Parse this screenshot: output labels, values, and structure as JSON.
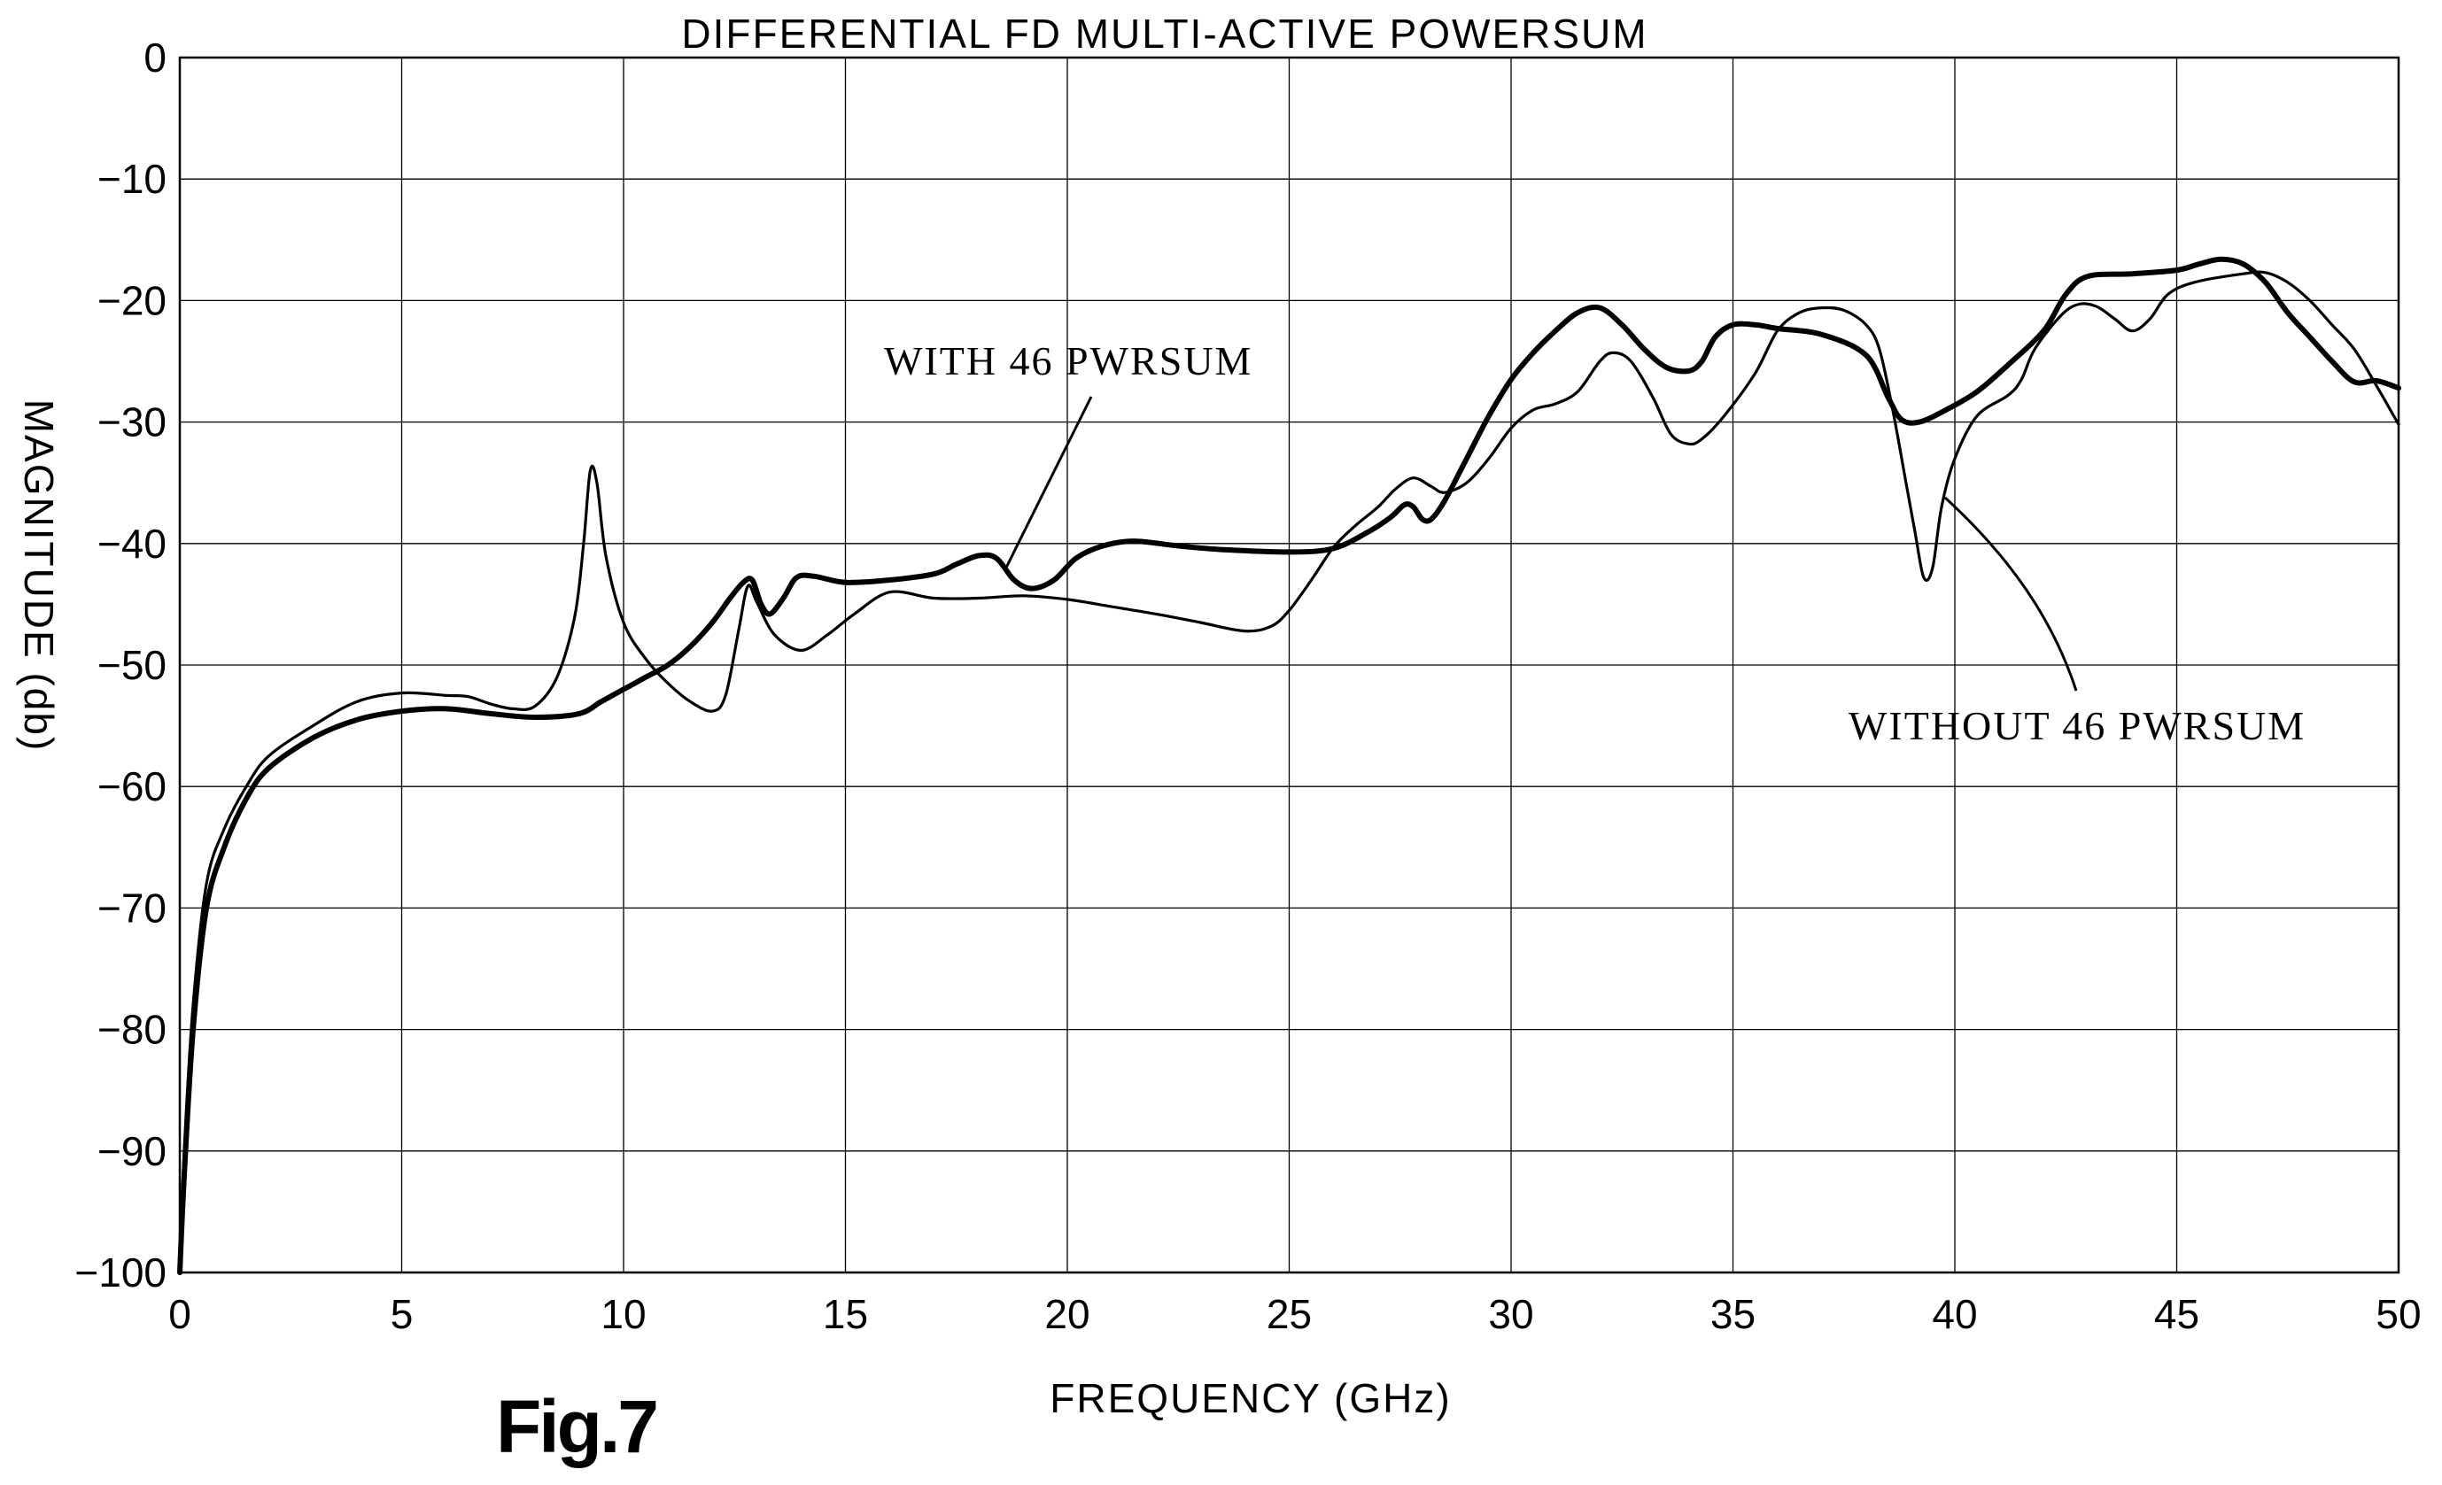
{
  "chart_data": {
    "type": "line",
    "title": "DIFFERENTIAL FD MULTI-ACTIVE POWERSUM",
    "xlabel": "FREQUENCY (GHz)",
    "ylabel": "MAGNITUDE (db)",
    "xlim": [
      0,
      50
    ],
    "ylim": [
      -100,
      0
    ],
    "grid": true,
    "x_ticks": [
      "0",
      "5",
      "10",
      "15",
      "20",
      "25",
      "30",
      "35",
      "40",
      "45",
      "50"
    ],
    "y_ticks": [
      "0",
      "−10",
      "−20",
      "−30",
      "−40",
      "−50",
      "−60",
      "−70",
      "−80",
      "−90",
      "−100"
    ],
    "series": [
      {
        "name": "WITH 46 PWRSUM",
        "style": "thick",
        "points": [
          [
            0.0,
            -100
          ],
          [
            0.1,
            -92
          ],
          [
            0.3,
            -80
          ],
          [
            0.6,
            -70
          ],
          [
            1,
            -65
          ],
          [
            1.5,
            -61
          ],
          [
            2,
            -58.5
          ],
          [
            3,
            -56
          ],
          [
            4,
            -54.5
          ],
          [
            5,
            -53.8
          ],
          [
            6,
            -53.6
          ],
          [
            7,
            -54
          ],
          [
            8,
            -54.3
          ],
          [
            9,
            -54
          ],
          [
            9.5,
            -53
          ],
          [
            10,
            -52
          ],
          [
            10.5,
            -51
          ],
          [
            11,
            -50
          ],
          [
            11.5,
            -48.5
          ],
          [
            12,
            -46.5
          ],
          [
            12.4,
            -44.5
          ],
          [
            12.7,
            -43.2
          ],
          [
            12.9,
            -43
          ],
          [
            13.1,
            -45
          ],
          [
            13.3,
            -45.8
          ],
          [
            13.6,
            -44.5
          ],
          [
            13.9,
            -42.8
          ],
          [
            14.3,
            -42.7
          ],
          [
            15,
            -43.2
          ],
          [
            16,
            -43
          ],
          [
            17,
            -42.5
          ],
          [
            17.5,
            -41.7
          ],
          [
            18,
            -41
          ],
          [
            18.4,
            -41.2
          ],
          [
            18.8,
            -43
          ],
          [
            19.2,
            -43.7
          ],
          [
            19.7,
            -43
          ],
          [
            20.2,
            -41.2
          ],
          [
            20.8,
            -40.2
          ],
          [
            21.5,
            -39.8
          ],
          [
            22.5,
            -40.2
          ],
          [
            23.5,
            -40.5
          ],
          [
            25,
            -40.7
          ],
          [
            26,
            -40.4
          ],
          [
            26.8,
            -39
          ],
          [
            27.3,
            -37.8
          ],
          [
            27.6,
            -36.8
          ],
          [
            27.8,
            -37
          ],
          [
            28,
            -38
          ],
          [
            28.2,
            -38
          ],
          [
            28.5,
            -36.5
          ],
          [
            29,
            -33
          ],
          [
            29.5,
            -29.5
          ],
          [
            30,
            -26.5
          ],
          [
            30.5,
            -24.3
          ],
          [
            31,
            -22.5
          ],
          [
            31.5,
            -21
          ],
          [
            32,
            -20.6
          ],
          [
            32.5,
            -22
          ],
          [
            33,
            -24
          ],
          [
            33.5,
            -25.5
          ],
          [
            34,
            -25.8
          ],
          [
            34.3,
            -25
          ],
          [
            34.6,
            -23
          ],
          [
            35,
            -22
          ],
          [
            35.5,
            -22
          ],
          [
            36,
            -22.3
          ],
          [
            37,
            -22.8
          ],
          [
            38,
            -24.5
          ],
          [
            38.5,
            -28
          ],
          [
            38.8,
            -29.8
          ],
          [
            39.2,
            -30
          ],
          [
            39.8,
            -29
          ],
          [
            40.5,
            -27.5
          ],
          [
            41.2,
            -25.3
          ],
          [
            42,
            -22.5
          ],
          [
            42.5,
            -19.5
          ],
          [
            43,
            -18
          ],
          [
            44,
            -17.8
          ],
          [
            45,
            -17.5
          ],
          [
            45.5,
            -17
          ],
          [
            46,
            -16.6
          ],
          [
            46.5,
            -17
          ],
          [
            47,
            -18.5
          ],
          [
            47.5,
            -21
          ],
          [
            48,
            -23
          ],
          [
            48.5,
            -25
          ],
          [
            49,
            -26.7
          ],
          [
            49.5,
            -26.6
          ],
          [
            50,
            -27.2
          ]
        ]
      },
      {
        "name": "WITHOUT 46 PWRSUM",
        "style": "thin",
        "points": [
          [
            0.0,
            -100
          ],
          [
            0.1,
            -90
          ],
          [
            0.3,
            -78
          ],
          [
            0.6,
            -68
          ],
          [
            1,
            -63.5
          ],
          [
            1.5,
            -60
          ],
          [
            2,
            -57.5
          ],
          [
            3,
            -55
          ],
          [
            4,
            -53
          ],
          [
            5,
            -52.3
          ],
          [
            6,
            -52.5
          ],
          [
            6.5,
            -52.6
          ],
          [
            7,
            -53.2
          ],
          [
            7.5,
            -53.6
          ],
          [
            8,
            -53.4
          ],
          [
            8.5,
            -51
          ],
          [
            8.9,
            -46
          ],
          [
            9.1,
            -40
          ],
          [
            9.25,
            -34
          ],
          [
            9.4,
            -35
          ],
          [
            9.6,
            -41
          ],
          [
            10,
            -46.5
          ],
          [
            10.5,
            -49.5
          ],
          [
            11,
            -51.5
          ],
          [
            11.5,
            -53
          ],
          [
            12,
            -53.8
          ],
          [
            12.3,
            -52.5
          ],
          [
            12.6,
            -47
          ],
          [
            12.8,
            -43.5
          ],
          [
            13,
            -44.8
          ],
          [
            13.4,
            -47.5
          ],
          [
            14,
            -48.8
          ],
          [
            14.6,
            -47.5
          ],
          [
            15.2,
            -45.8
          ],
          [
            16,
            -44
          ],
          [
            17,
            -44.5
          ],
          [
            18,
            -44.5
          ],
          [
            19,
            -44.3
          ],
          [
            20,
            -44.6
          ],
          [
            21,
            -45.2
          ],
          [
            22,
            -45.8
          ],
          [
            23,
            -46.5
          ],
          [
            24,
            -47.2
          ],
          [
            24.6,
            -46.8
          ],
          [
            25,
            -45.5
          ],
          [
            25.5,
            -43
          ],
          [
            26,
            -40.3
          ],
          [
            26.5,
            -38.5
          ],
          [
            27,
            -37
          ],
          [
            27.4,
            -35.5
          ],
          [
            27.8,
            -34.6
          ],
          [
            28.2,
            -35.3
          ],
          [
            28.5,
            -35.8
          ],
          [
            29,
            -35
          ],
          [
            29.5,
            -33
          ],
          [
            30,
            -30.5
          ],
          [
            30.5,
            -29
          ],
          [
            31,
            -28.5
          ],
          [
            31.5,
            -27.5
          ],
          [
            32,
            -25
          ],
          [
            32.3,
            -24.3
          ],
          [
            32.7,
            -25
          ],
          [
            33.2,
            -28
          ],
          [
            33.6,
            -31
          ],
          [
            34,
            -31.8
          ],
          [
            34.3,
            -31.4
          ],
          [
            34.8,
            -29.5
          ],
          [
            35.5,
            -26
          ],
          [
            36,
            -22.5
          ],
          [
            36.5,
            -21
          ],
          [
            37,
            -20.6
          ],
          [
            37.5,
            -20.8
          ],
          [
            38,
            -22
          ],
          [
            38.3,
            -24
          ],
          [
            38.6,
            -29
          ],
          [
            38.9,
            -35
          ],
          [
            39.1,
            -39
          ],
          [
            39.3,
            -42.8
          ],
          [
            39.5,
            -42
          ],
          [
            39.7,
            -37
          ],
          [
            40,
            -33
          ],
          [
            40.5,
            -29.5
          ],
          [
            41.2,
            -27.8
          ],
          [
            41.5,
            -26.5
          ],
          [
            41.8,
            -24
          ],
          [
            42.4,
            -21.2
          ],
          [
            42.8,
            -20.3
          ],
          [
            43.2,
            -20.5
          ],
          [
            43.6,
            -21.5
          ],
          [
            44,
            -22.5
          ],
          [
            44.4,
            -21.5
          ],
          [
            44.8,
            -19.5
          ],
          [
            45.4,
            -18.5
          ],
          [
            46.5,
            -17.8
          ],
          [
            47,
            -17.7
          ],
          [
            47.5,
            -18.5
          ],
          [
            48,
            -20
          ],
          [
            48.5,
            -22
          ],
          [
            49,
            -24
          ],
          [
            49.5,
            -27
          ],
          [
            50,
            -30.2
          ]
        ]
      }
    ],
    "annotations": [
      {
        "text": "WITH 46 PWRSUM",
        "position": "upper-middle"
      },
      {
        "text": "WITHOUT 46 PWRSUM",
        "position": "lower-right"
      }
    ]
  },
  "figure_label": "Fig.7"
}
